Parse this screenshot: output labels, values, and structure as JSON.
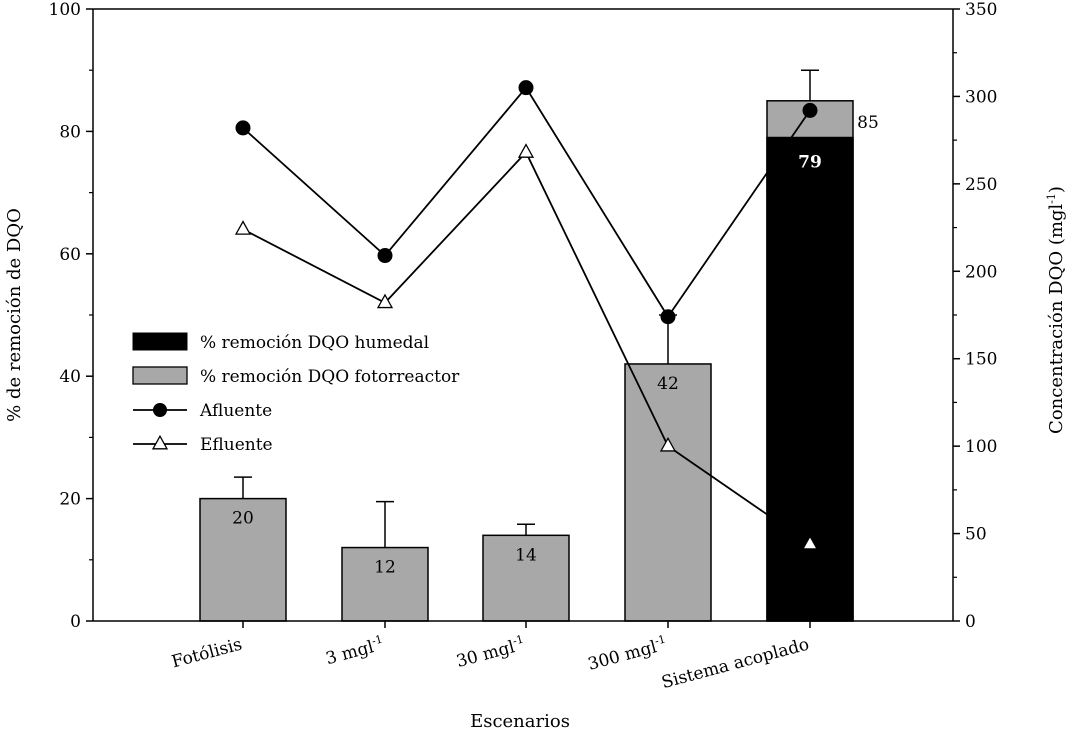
{
  "chart_data": {
    "type": "bar",
    "xlabel": "Escenarios",
    "ylabel_left": "% de remoción de DQO",
    "ylabel_right": {
      "base": "Concentración DQO (mgl",
      "sup": "-1",
      "close": ")"
    },
    "ylim_left": [
      0,
      100
    ],
    "ylim_right": [
      0,
      350
    ],
    "left_ticks": [
      "0",
      "20",
      "40",
      "60",
      "80",
      "100"
    ],
    "right_ticks": [
      "0",
      "50",
      "100",
      "150",
      "200",
      "250",
      "300",
      "350"
    ],
    "categories": [
      {
        "label": "Fotólisis",
        "sup": ""
      },
      {
        "label": "3 mgl",
        "sup": "-1"
      },
      {
        "label": "30 mgl",
        "sup": "-1"
      },
      {
        "label": "300 mgl",
        "sup": "-1"
      },
      {
        "label": "Sistema acoplado",
        "sup": ""
      }
    ],
    "series": [
      {
        "name": "% remoción DQO fotorreactor",
        "kind": "bar",
        "color": "#a8a8a8",
        "values": [
          20,
          12,
          14,
          42,
          85
        ],
        "error_upper": [
          23.5,
          19.5,
          15.8,
          50,
          90
        ],
        "value_labels": [
          "20",
          "12",
          "14",
          "42",
          "85"
        ]
      },
      {
        "name": "% remoción DQO humedal",
        "kind": "bar",
        "color": "#000000",
        "values": [
          0,
          0,
          0,
          0,
          79
        ],
        "value_labels": [
          "",
          "",
          "",
          "",
          "79"
        ]
      },
      {
        "name": "Afluente",
        "kind": "line",
        "marker": "circle",
        "axis": "right",
        "values": [
          282,
          209,
          305,
          174,
          292
        ]
      },
      {
        "name": "Efluente",
        "kind": "line",
        "marker": "triangle",
        "axis": "right",
        "values": [
          224,
          182,
          268,
          100,
          44
        ]
      }
    ],
    "legend": {
      "placement": "center-left",
      "entries": [
        "% remoción DQO humedal",
        "% remoción DQO fotorreactor",
        "Afluente",
        "Efluente"
      ]
    },
    "grid": false
  }
}
